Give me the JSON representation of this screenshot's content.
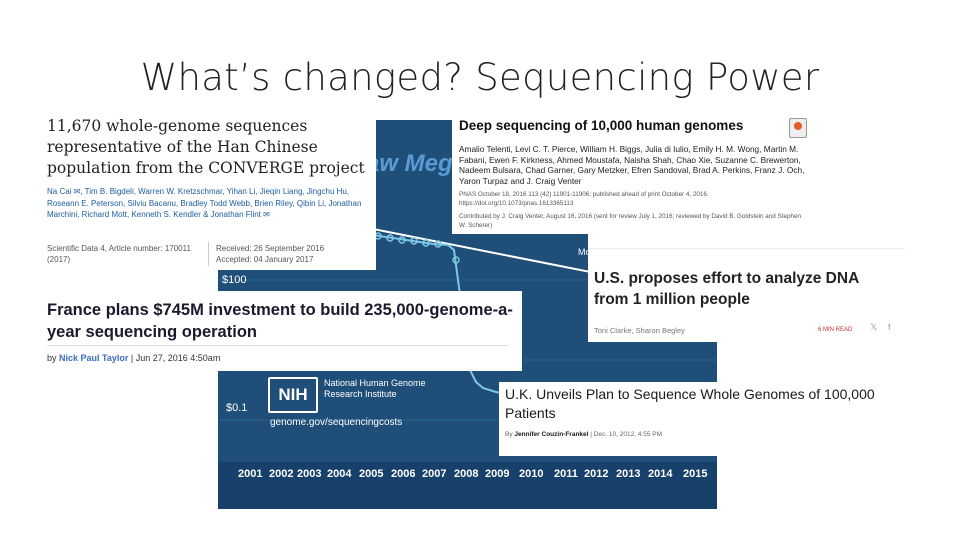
{
  "slide": {
    "title": "What’s changed? Sequencing Power"
  },
  "chart": {
    "title_fragment": "aw Megaba",
    "y_ticks": [
      "$100",
      "$0.1"
    ],
    "moore_label": "Moore's Law",
    "x_ticks": [
      "2001",
      "2002",
      "2003",
      "2004",
      "2005",
      "2006",
      "2007",
      "2008",
      "2009",
      "2010",
      "2011",
      "2012",
      "2013",
      "2014",
      "2015"
    ],
    "nih_logo": "NIH",
    "nih_org": "National Human Genome Research Institute",
    "nih_url": "genome.gov/sequencingcosts",
    "background_color": "#1f4e79"
  },
  "converge": {
    "title": "11,670 whole-genome sequences representative of the Han Chinese population from the CONVERGE project",
    "authors": "Na Cai ✉, Tim B. Bigdeli, Warren W. Kretzschmar, Yihan Li, Jieqin Liang, Jingchu Hu, Roseann E. Peterson, Silviu Bacanu, Bradley Todd Webb, Brien Riley, Qibin Li, Jonathan Marchini, Richard Mott, Kenneth S. Kendler & Jonathan Flint ✉",
    "meta_left_1": "Scientific Data 4, Article number: 170011",
    "meta_left_2": "(2017)",
    "meta_right_1": "Received: 26 September 2016",
    "meta_right_2": "Accepted: 04 January 2017"
  },
  "deep": {
    "title": "Deep sequencing of 10,000 human genomes",
    "authors": "Amalio Telenti, Levi C. T. Pierce, William H. Biggs, Julia di Iulio, Emily H. M. Wong, Martin M. Fabani, Ewen F. Kirkness, Ahmed Moustafa, Naisha Shah, Chao Xie, Suzanne C. Brewerton, Nadeem Bulsara, Chad Garner, Gary Metzker, Efren Sandoval, Brad A. Perkins, Franz J. Och, Yaron Turpaz and J. Craig Venter",
    "pnas": "PNAS October 18, 2016 113 (42) 11901-11906; published ahead of print October 4, 2016. https://doi.org/10.1073/pnas.1613365113",
    "contributed": "Contributed by J. Craig Venter, August 16, 2016 (sent for review July 1, 2016; reviewed by David B. Goldstein and Stephen W. Scherer)"
  },
  "us": {
    "title": "U.S. proposes effort to analyze DNA from 1 million people",
    "byline": "Toni Clarke, Sharon Begley",
    "share": "6 MIN READ",
    "twitter_icon": "twitter-icon",
    "facebook_icon": "facebook-icon"
  },
  "france": {
    "title": "France plans $745M investment to build 235,000-genome-a-year sequencing operation",
    "by": "by",
    "author": "Nick Paul Taylor",
    "date": "Jun 27, 2016 4:50am"
  },
  "uk": {
    "title": "U.K. Unveils Plan to Sequence Whole Genomes of 100,000 Patients",
    "by": "By",
    "author": "Jennifer Couzin-Frankel",
    "date": "Dec. 10, 2012, 4:55 PM"
  }
}
